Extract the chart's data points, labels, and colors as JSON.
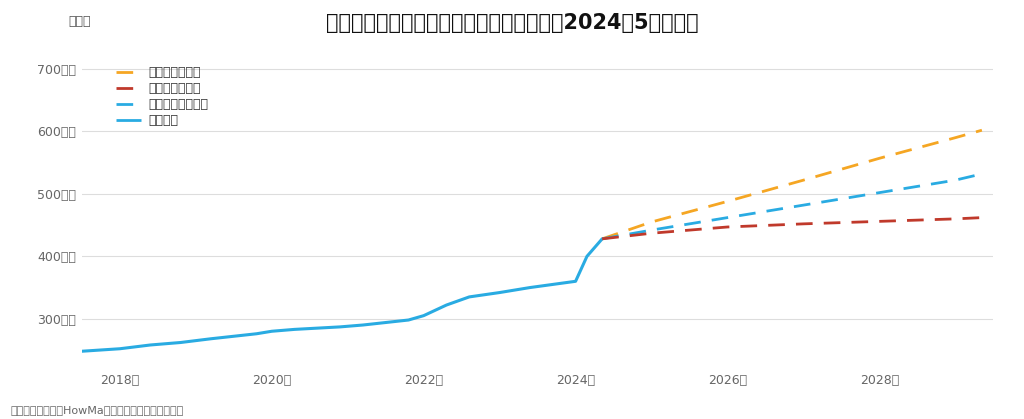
{
  "title": "大阪駅周辺の中古マンションの価格動向（2024年5月時点）",
  "ylabel": "坪単価",
  "footnote": "売出し事例を元にHowMa運営元のコラビットが集計",
  "background_color": "#ffffff",
  "grid_color": "#dddddd",
  "ylim": [
    220,
    730
  ],
  "yticks": [
    300,
    400,
    500,
    600,
    700
  ],
  "ytick_labels": [
    "300万円",
    "400万円",
    "500万円",
    "600万円",
    "700万円"
  ],
  "xticks": [
    2018,
    2020,
    2022,
    2024,
    2026,
    2028
  ],
  "xtick_labels": [
    "2018年",
    "2020年",
    "2022年",
    "2024年",
    "2026年",
    "2028年"
  ],
  "xlim": [
    2017.5,
    2029.5
  ],
  "historical_x": [
    2017.5,
    2018.0,
    2018.4,
    2018.8,
    2019.2,
    2019.5,
    2019.8,
    2020.0,
    2020.3,
    2020.6,
    2020.9,
    2021.2,
    2021.5,
    2021.8,
    2022.0,
    2022.3,
    2022.6,
    2023.0,
    2023.4,
    2023.7,
    2024.0,
    2024.15,
    2024.35
  ],
  "historical_y": [
    248,
    252,
    258,
    262,
    268,
    272,
    276,
    280,
    283,
    285,
    287,
    290,
    294,
    298,
    305,
    322,
    335,
    342,
    350,
    355,
    360,
    400,
    428
  ],
  "historical_color": "#29abe2",
  "historical_label": "過去推移",
  "historical_lw": 2.2,
  "good_x": [
    2024.35,
    2025.0,
    2026.0,
    2027.0,
    2028.0,
    2029.0,
    2029.35
  ],
  "good_y": [
    428,
    455,
    488,
    522,
    557,
    590,
    602
  ],
  "good_color": "#f5a623",
  "good_label": "グッドシナリオ",
  "normal_x": [
    2024.35,
    2025.0,
    2026.0,
    2027.0,
    2028.0,
    2029.0,
    2029.35
  ],
  "normal_y": [
    428,
    442,
    462,
    482,
    502,
    522,
    532
  ],
  "normal_color": "#29abe2",
  "normal_label": "ノーマルシナリオ",
  "bad_x": [
    2024.35,
    2025.0,
    2026.0,
    2027.0,
    2028.0,
    2029.0,
    2029.35
  ],
  "bad_y": [
    428,
    437,
    447,
    452,
    456,
    460,
    462
  ],
  "bad_color": "#c0392b",
  "bad_label": "バッドシナリオ",
  "legend_entries": [
    {
      "label": "グッドシナリオ",
      "color": "#f5a623",
      "linestyle": "--"
    },
    {
      "label": "バッドシナリオ",
      "color": "#c0392b",
      "linestyle": "--"
    },
    {
      "label": "ノーマルシナリオ",
      "color": "#29abe2",
      "linestyle": "--"
    },
    {
      "label": "過去推移",
      "color": "#29abe2",
      "linestyle": "-"
    }
  ],
  "title_fontsize": 15,
  "axis_fontsize": 9,
  "tick_fontsize": 9,
  "legend_fontsize": 9,
  "footnote_fontsize": 8
}
